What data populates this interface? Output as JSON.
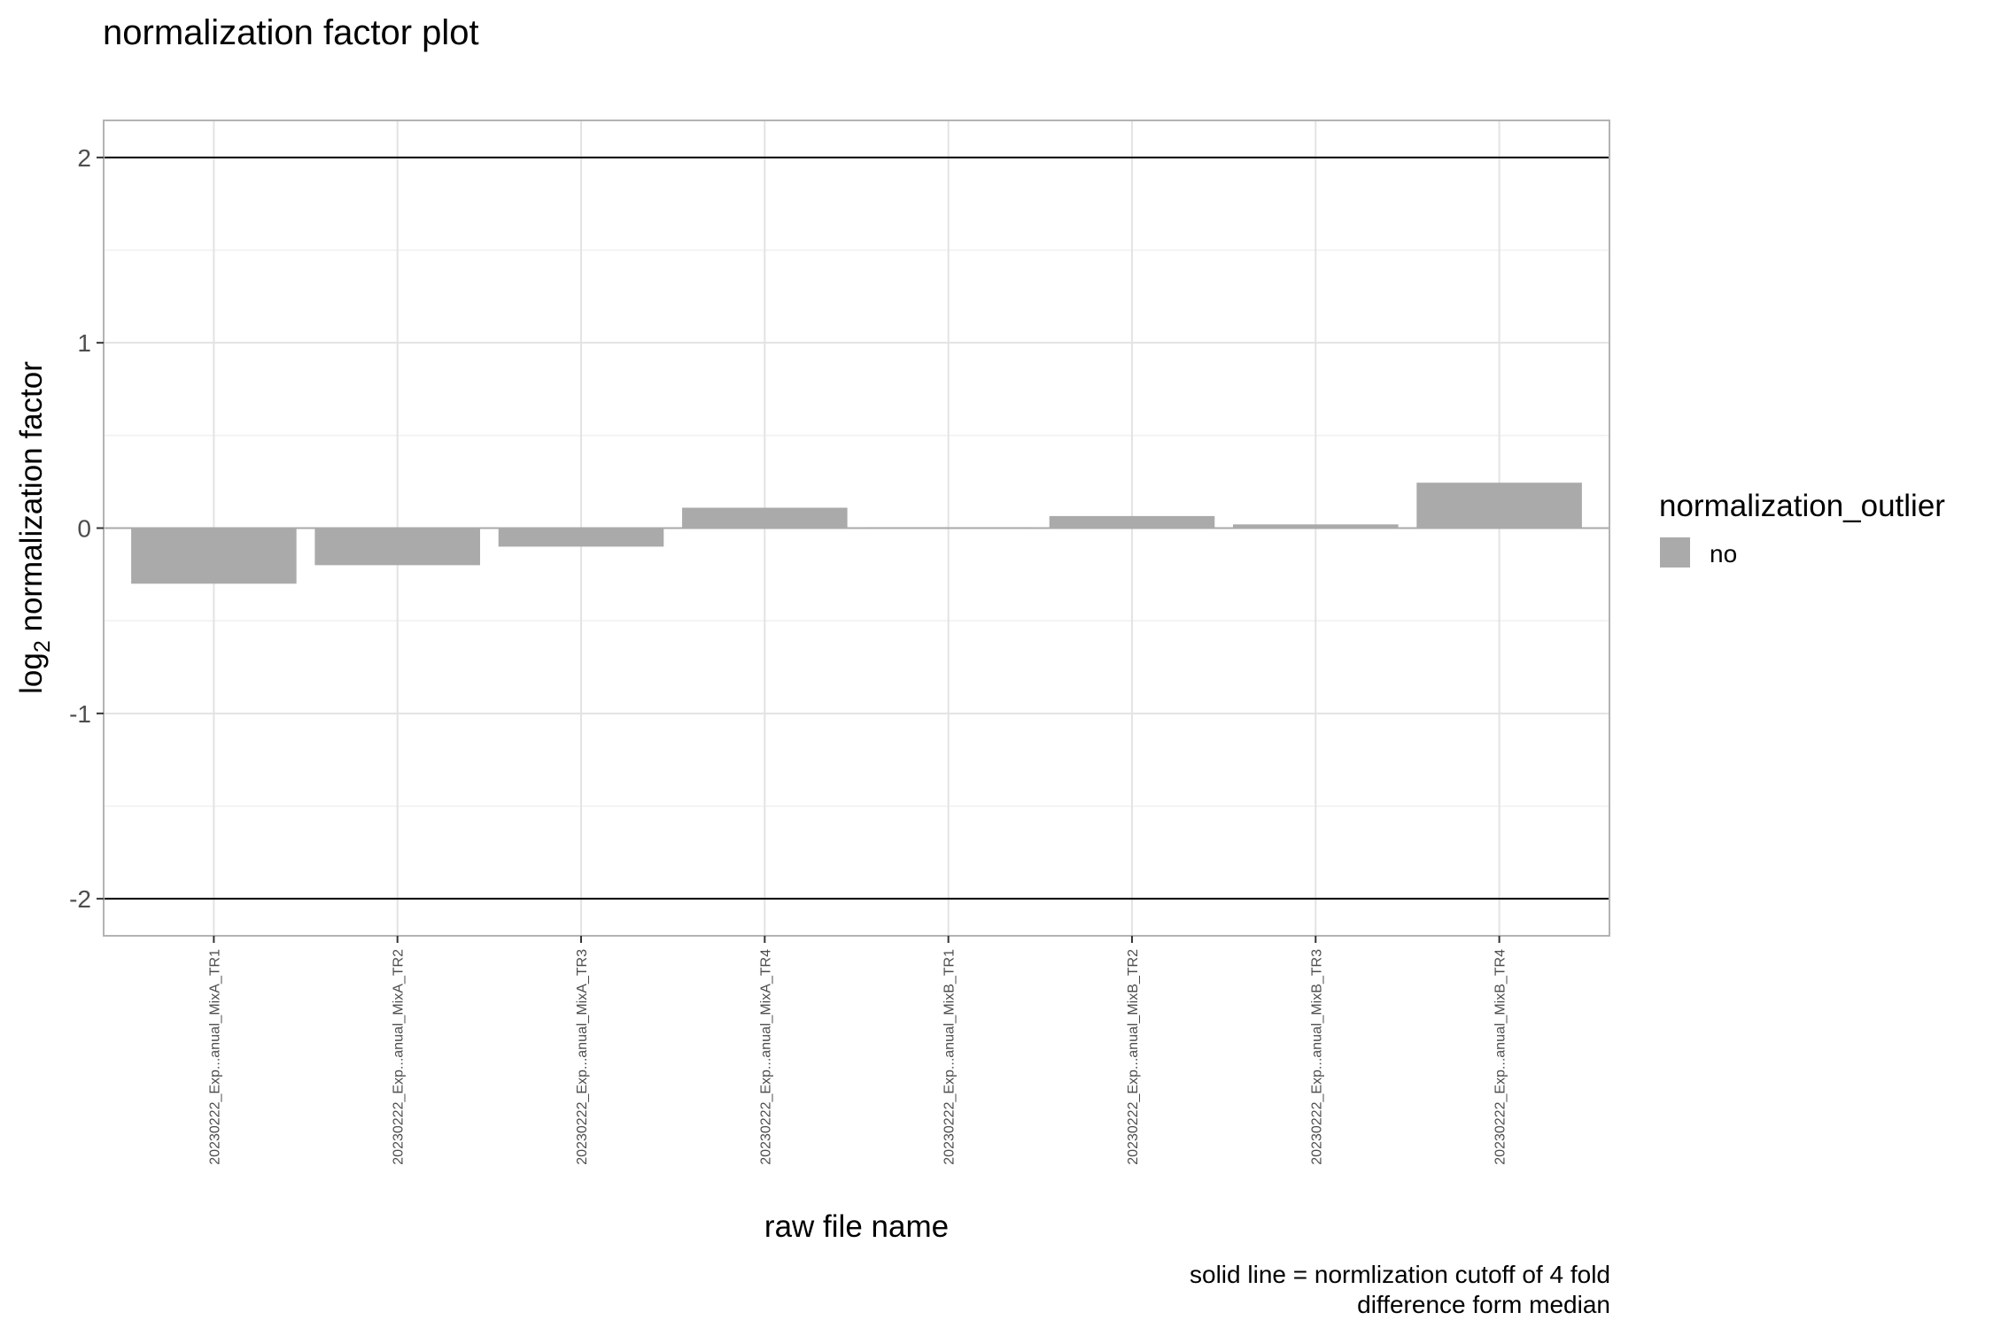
{
  "chart_data": {
    "type": "bar",
    "title": "normalization factor plot",
    "xlabel": "raw file name",
    "ylabel_main": "log",
    "ylabel_sub": "2",
    "ylabel_rest": " normalization factor",
    "categories": [
      "20230222_Exp...anual_MixA_TR1",
      "20230222_Exp...anual_MixA_TR2",
      "20230222_Exp...anual_MixA_TR3",
      "20230222_Exp...anual_MixA_TR4",
      "20230222_Exp...anual_MixB_TR1",
      "20230222_Exp...anual_MixB_TR2",
      "20230222_Exp...anual_MixB_TR3",
      "20230222_Exp...anual_MixB_TR4"
    ],
    "values": [
      -0.3,
      -0.2,
      -0.1,
      0.11,
      0.005,
      0.065,
      0.02,
      0.245
    ],
    "ylim": [
      -2.2,
      2.2
    ],
    "yticks": [
      "2",
      "1",
      "0",
      "-1",
      "-2"
    ],
    "cutoff_lines": [
      2,
      -2
    ],
    "bar_color": "#aaaaaa",
    "grid": true,
    "legend": {
      "title": "normalization_outlier",
      "placement": "right",
      "entries": [
        {
          "label": "no",
          "color": "#aaaaaa"
        }
      ]
    },
    "caption_line1": "solid line = normlization cutoff of 4 fold",
    "caption_line2": "difference form median"
  }
}
